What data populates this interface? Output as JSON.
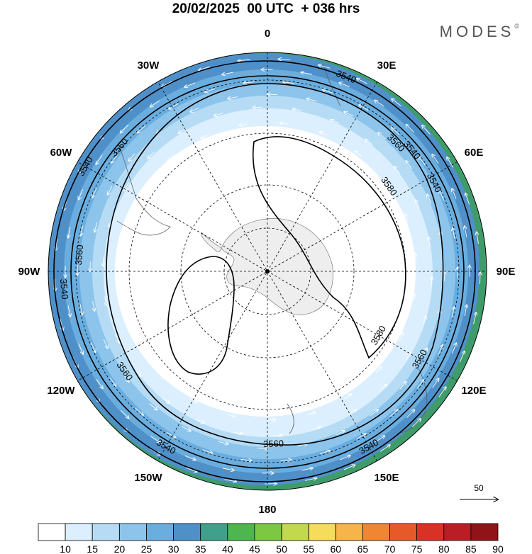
{
  "title": "20/02/2025  00 UTC  + 036 hrs",
  "brand": {
    "name": "MODES",
    "mark": "©"
  },
  "map": {
    "projection": "south-polar-stereographic",
    "longitude_labels": [
      {
        "lon": 0,
        "text": "0"
      },
      {
        "lon": 30,
        "text": "30E"
      },
      {
        "lon": 60,
        "text": "60E"
      },
      {
        "lon": 90,
        "text": "90E"
      },
      {
        "lon": 120,
        "text": "120E"
      },
      {
        "lon": 150,
        "text": "150E"
      },
      {
        "lon": 180,
        "text": "180"
      },
      {
        "lon": -150,
        "text": "150W"
      },
      {
        "lon": -120,
        "text": "120W"
      },
      {
        "lon": -90,
        "text": "90W"
      },
      {
        "lon": -60,
        "text": "60W"
      },
      {
        "lon": -30,
        "text": "30W"
      }
    ],
    "contour_labels": [
      {
        "text": "3540",
        "lon": 22
      },
      {
        "text": "3540",
        "lon": 50
      },
      {
        "text": "3540",
        "lon": 62
      },
      {
        "text": "3560",
        "lon": 45
      },
      {
        "text": "3580",
        "lon": 55
      },
      {
        "text": "3560",
        "lon": -50
      },
      {
        "text": "3540",
        "lon": -60
      },
      {
        "text": "3540",
        "lon": -95
      },
      {
        "text": "3560",
        "lon": -85
      },
      {
        "text": "3560",
        "lon": -125
      },
      {
        "text": "3540",
        "lon": -150
      },
      {
        "text": "3560",
        "lon": 178
      },
      {
        "text": "3540",
        "lon": 150
      },
      {
        "text": "3560",
        "lon": 120
      },
      {
        "text": "3580",
        "lon": 120
      }
    ],
    "wind_reference": {
      "value": "50"
    }
  },
  "colorbar": {
    "labels": [
      "10",
      "15",
      "20",
      "25",
      "30",
      "35",
      "40",
      "45",
      "50",
      "55",
      "60",
      "65",
      "70",
      "75",
      "80",
      "85",
      "90"
    ],
    "colors": [
      "#ffffff",
      "#dcefff",
      "#b6dcf5",
      "#8cc4ec",
      "#6aaddf",
      "#4f90c9",
      "#3fa08c",
      "#4db64e",
      "#7cc843",
      "#c2d94e",
      "#f6dc5c",
      "#f6b44a",
      "#f08634",
      "#e65a2a",
      "#d63226",
      "#b71f25",
      "#8e1418"
    ]
  }
}
